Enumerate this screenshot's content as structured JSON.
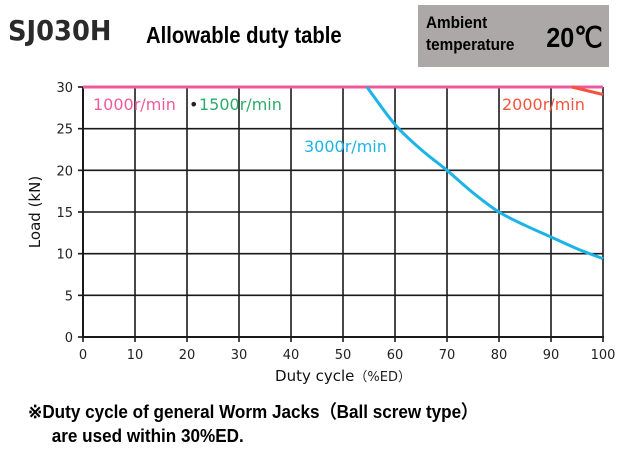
{
  "header": {
    "model": "SJ030H",
    "title": "Allowable duty table",
    "ambient_label_line1": "Ambient",
    "ambient_label_line2": "temperature",
    "ambient_value": "20℃"
  },
  "note": {
    "line1": "※Duty cycle of general Worm Jacks（Ball screw type）",
    "line2": "are used within 30%ED."
  },
  "chart_data": {
    "type": "line",
    "title": "Allowable duty table",
    "xlabel": "Duty cycle",
    "xlabel_unit": "（%ED）",
    "ylabel": "Load  (kN)",
    "xlim": [
      0,
      100
    ],
    "ylim": [
      0,
      30
    ],
    "xticks": [
      0,
      10,
      20,
      30,
      40,
      50,
      60,
      70,
      80,
      90,
      100
    ],
    "yticks": [
      0,
      5,
      10,
      15,
      20,
      25,
      30
    ],
    "grid": true,
    "series": [
      {
        "name": "1000r/min",
        "color": "#ee5a9c",
        "x": [
          0,
          100
        ],
        "y": [
          30,
          30
        ]
      },
      {
        "name": "1500r/min",
        "color": "#2eaa6a",
        "x": [
          0,
          100
        ],
        "y": [
          30,
          30
        ]
      },
      {
        "name": "2000r/min",
        "color": "#f2553f",
        "x": [
          0,
          94,
          100
        ],
        "y": [
          30,
          30,
          29.1
        ]
      },
      {
        "name": "3000r/min",
        "color": "#1cb4e6",
        "x": [
          54.6,
          60,
          65,
          70,
          75,
          80,
          85,
          90,
          95,
          100
        ],
        "y": [
          30,
          25.5,
          22.5,
          20,
          17.3,
          15,
          13.4,
          12,
          10.6,
          9.4
        ]
      }
    ],
    "labels": {
      "l1000": "1000r/min",
      "sep": "•",
      "l1500": "1500r/min",
      "l2000": "2000r/min",
      "l3000": "3000r/min"
    }
  }
}
